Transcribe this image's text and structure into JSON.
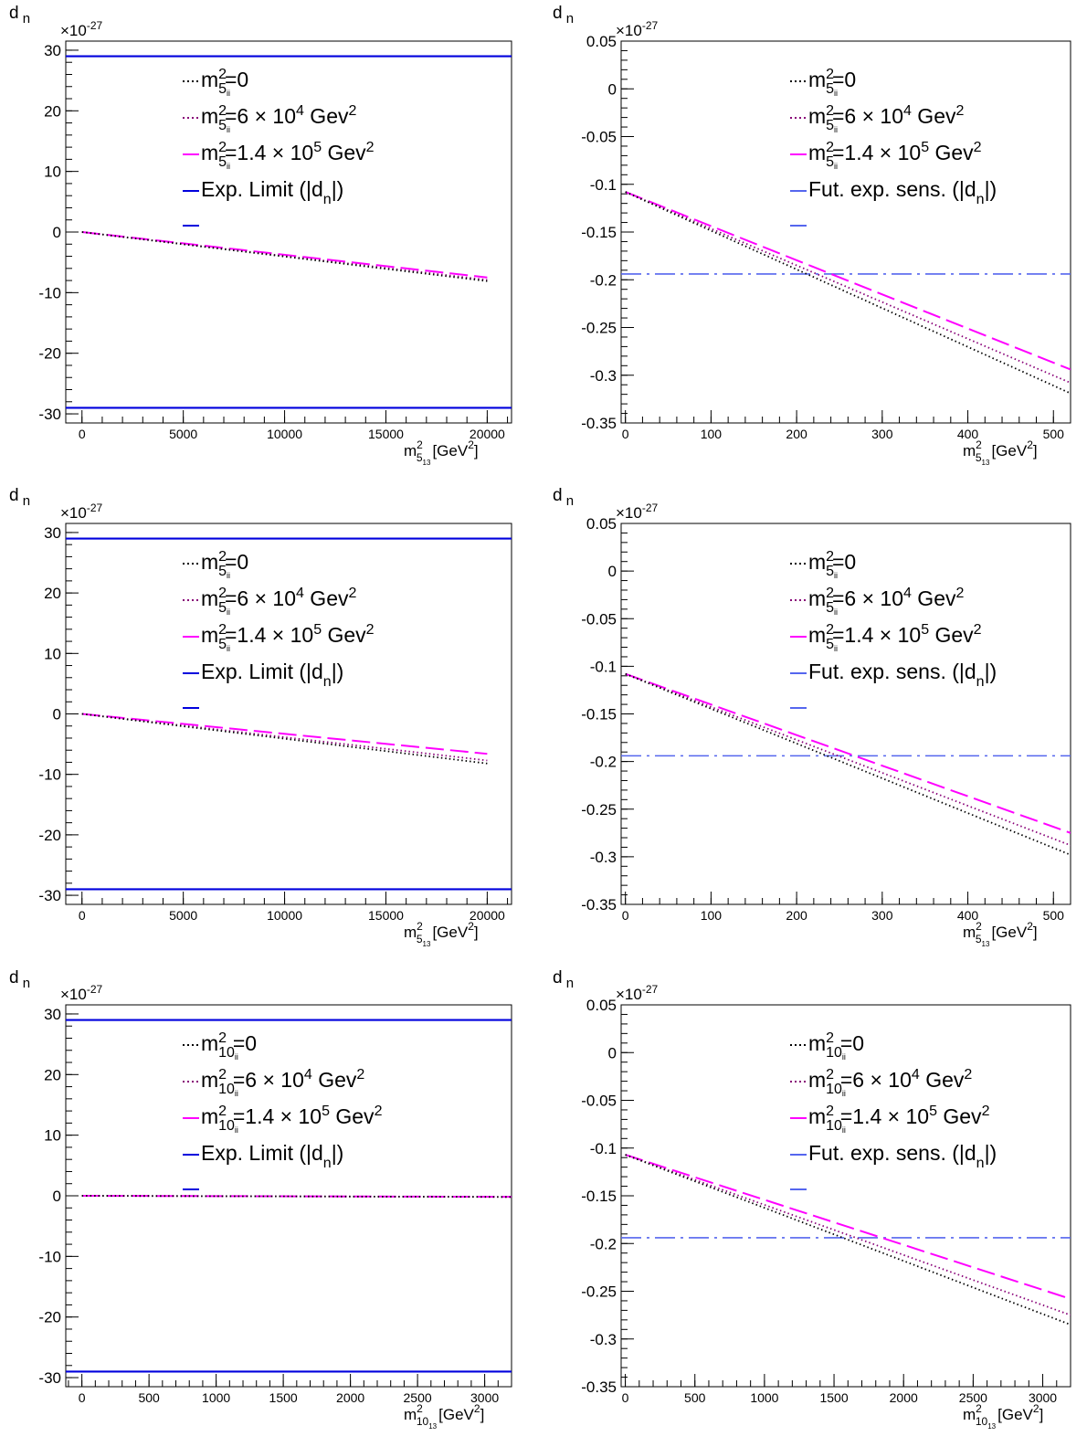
{
  "chart_data": [
    {
      "type": "line",
      "ylabel": "d",
      "ylabel_sub": "n",
      "exponent_label": "×10",
      "exponent": "-27",
      "xlabel_base": "m",
      "xlabel_sup": "2",
      "xlabel_sub": "5",
      "xlabel_subsub": "13",
      "xlabel_unit": "[GeV",
      "xlabel_unit_sup": "2",
      "xlabel_unit_close": "]",
      "xlim": [
        -800,
        21200
      ],
      "ylim": [
        -31.5,
        31.5
      ],
      "x_ticks": [
        "0",
        "5000",
        "10000",
        "15000",
        "20000"
      ],
      "x_tick_values": [
        0,
        5000,
        10000,
        15000,
        20000
      ],
      "x_minor_step": 1000,
      "y_ticks": [
        "-30",
        "-20",
        "-10",
        "0",
        "10",
        "20",
        "30"
      ],
      "y_tick_values": [
        -30,
        -20,
        -10,
        0,
        10,
        20,
        30
      ],
      "y_minor_step": 2,
      "legend": {
        "position": "top-left",
        "entries": [
          {
            "sym_base": "m",
            "sym_sup": "2",
            "sym_sub": "5",
            "sym_subsub": "ii",
            "text": "=0",
            "style": "dotted-black"
          },
          {
            "sym_base": "m",
            "sym_sup": "2",
            "sym_sub": "5",
            "sym_subsub": "ii",
            "text": "=6 × 10",
            "text_sup": "4",
            "text2": " Gev",
            "text2_sup": "2",
            "style": "dotted-purple"
          },
          {
            "sym_base": "m",
            "sym_sup": "2",
            "sym_sub": "5",
            "sym_subsub": "ii",
            "text": "=1.4 × 10",
            "text_sup": "5",
            "text2": " Gev",
            "text2_sup": "2",
            "style": "dashed-magenta"
          },
          {
            "sym_base": "",
            "text": "Exp. Limit (|d",
            "text_sub": "n",
            "text2": "|)",
            "style": "solid-blue"
          }
        ]
      },
      "series": [
        {
          "style": "dotted-black",
          "x": [
            0,
            20000
          ],
          "y": [
            0,
            -8.1
          ]
        },
        {
          "style": "dotted-purple",
          "x": [
            0,
            20000
          ],
          "y": [
            0,
            -7.9
          ]
        },
        {
          "style": "dashed-magenta",
          "x": [
            0,
            20000
          ],
          "y": [
            0,
            -7.5
          ]
        }
      ],
      "hlines": [
        {
          "style": "solid-blue",
          "y": 29
        },
        {
          "style": "solid-blue",
          "y": -29
        }
      ]
    },
    {
      "type": "line",
      "ylabel": "d",
      "ylabel_sub": "n",
      "exponent_label": "×10",
      "exponent": "-27",
      "xlabel_base": "m",
      "xlabel_sup": "2",
      "xlabel_sub": "5",
      "xlabel_subsub": "13",
      "xlabel_unit": "[GeV",
      "xlabel_unit_sup": "2",
      "xlabel_unit_close": "]",
      "xlim": [
        -5,
        520
      ],
      "ylim": [
        -0.35,
        0.05
      ],
      "x_ticks": [
        "0",
        "100",
        "200",
        "300",
        "400",
        "500"
      ],
      "x_tick_values": [
        0,
        100,
        200,
        300,
        400,
        500
      ],
      "x_minor_step": 20,
      "y_ticks": [
        "-0.35",
        "-0.3",
        "-0.25",
        "-0.2",
        "-0.15",
        "-0.1",
        "-0.05",
        "0",
        "0.05"
      ],
      "y_tick_values": [
        -0.35,
        -0.3,
        -0.25,
        -0.2,
        -0.15,
        -0.1,
        -0.05,
        0,
        0.05
      ],
      "y_minor_step": 0.01,
      "legend": {
        "position": "top-center",
        "entries": [
          {
            "sym_base": "m",
            "sym_sup": "2",
            "sym_sub": "5",
            "sym_subsub": "ii",
            "text": "=0",
            "style": "dotted-black"
          },
          {
            "sym_base": "m",
            "sym_sup": "2",
            "sym_sub": "5",
            "sym_subsub": "ii",
            "text": "=6 × 10",
            "text_sup": "4",
            "text2": " Gev",
            "text2_sup": "2",
            "style": "dotted-purple"
          },
          {
            "sym_base": "m",
            "sym_sup": "2",
            "sym_sub": "5",
            "sym_subsub": "ii",
            "text": "=1.4 × 10",
            "text_sup": "5",
            "text2": " Gev",
            "text2_sup": "2",
            "style": "dashed-magenta"
          },
          {
            "sym_base": "",
            "text": "Fut. exp. sens. (|d",
            "text_sub": "n",
            "text2": "|)",
            "style": "dashdot-blue"
          }
        ]
      },
      "series": [
        {
          "style": "dotted-black",
          "x": [
            0,
            520
          ],
          "y": [
            -0.108,
            -0.319
          ]
        },
        {
          "style": "dotted-purple",
          "x": [
            0,
            520
          ],
          "y": [
            -0.108,
            -0.308
          ]
        },
        {
          "style": "dashed-magenta",
          "x": [
            0,
            520
          ],
          "y": [
            -0.108,
            -0.294
          ]
        }
      ],
      "hlines": [
        {
          "style": "dashdot-blue",
          "y": -0.194
        }
      ]
    },
    {
      "type": "line",
      "ylabel": "d",
      "ylabel_sub": "n",
      "exponent_label": "×10",
      "exponent": "-27",
      "xlabel_base": "m",
      "xlabel_sup": "2",
      "xlabel_sub": "5",
      "xlabel_subsub": "13",
      "xlabel_unit": "[GeV",
      "xlabel_unit_sup": "2",
      "xlabel_unit_close": "]",
      "xlim": [
        -800,
        21200
      ],
      "ylim": [
        -31.5,
        31.5
      ],
      "x_ticks": [
        "0",
        "5000",
        "10000",
        "15000",
        "20000"
      ],
      "x_tick_values": [
        0,
        5000,
        10000,
        15000,
        20000
      ],
      "x_minor_step": 1000,
      "y_ticks": [
        "-30",
        "-20",
        "-10",
        "0",
        "10",
        "20",
        "30"
      ],
      "y_tick_values": [
        -30,
        -20,
        -10,
        0,
        10,
        20,
        30
      ],
      "y_minor_step": 2,
      "legend": {
        "position": "top-left",
        "entries": [
          {
            "sym_base": "m",
            "sym_sup": "2",
            "sym_sub": "5",
            "sym_subsub": "ii",
            "text": "=0",
            "style": "dotted-black"
          },
          {
            "sym_base": "m",
            "sym_sup": "2",
            "sym_sub": "5",
            "sym_subsub": "ii",
            "text": "=6 × 10",
            "text_sup": "4",
            "text2": " Gev",
            "text2_sup": "2",
            "style": "dotted-purple"
          },
          {
            "sym_base": "m",
            "sym_sup": "2",
            "sym_sub": "5",
            "sym_subsub": "ii",
            "text": "=1.4 × 10",
            "text_sup": "5",
            "text2": " Gev",
            "text2_sup": "2",
            "style": "dashed-magenta"
          },
          {
            "sym_base": "",
            "text": "Exp. Limit (|d",
            "text_sub": "n",
            "text2": "|)",
            "style": "solid-blue"
          }
        ]
      },
      "series": [
        {
          "style": "dotted-black",
          "x": [
            0,
            20000
          ],
          "y": [
            0,
            -8.2
          ]
        },
        {
          "style": "dotted-purple",
          "x": [
            0,
            20000
          ],
          "y": [
            0,
            -7.7
          ]
        },
        {
          "style": "dashed-magenta",
          "x": [
            0,
            20000
          ],
          "y": [
            0,
            -6.6
          ]
        }
      ],
      "hlines": [
        {
          "style": "solid-blue",
          "y": 29
        },
        {
          "style": "solid-blue",
          "y": -29
        }
      ]
    },
    {
      "type": "line",
      "ylabel": "d",
      "ylabel_sub": "n",
      "exponent_label": "×10",
      "exponent": "-27",
      "xlabel_base": "m",
      "xlabel_sup": "2",
      "xlabel_sub": "5",
      "xlabel_subsub": "13",
      "xlabel_unit": "[GeV",
      "xlabel_unit_sup": "2",
      "xlabel_unit_close": "]",
      "xlim": [
        -5,
        520
      ],
      "ylim": [
        -0.35,
        0.05
      ],
      "x_ticks": [
        "0",
        "100",
        "200",
        "300",
        "400",
        "500"
      ],
      "x_tick_values": [
        0,
        100,
        200,
        300,
        400,
        500
      ],
      "x_minor_step": 20,
      "y_ticks": [
        "-0.35",
        "-0.3",
        "-0.25",
        "-0.2",
        "-0.15",
        "-0.1",
        "-0.05",
        "0",
        "0.05"
      ],
      "y_tick_values": [
        -0.35,
        -0.3,
        -0.25,
        -0.2,
        -0.15,
        -0.1,
        -0.05,
        0,
        0.05
      ],
      "y_minor_step": 0.01,
      "legend": {
        "position": "top-center",
        "entries": [
          {
            "sym_base": "m",
            "sym_sup": "2",
            "sym_sub": "5",
            "sym_subsub": "ii",
            "text": "=0",
            "style": "dotted-black"
          },
          {
            "sym_base": "m",
            "sym_sup": "2",
            "sym_sub": "5",
            "sym_subsub": "ii",
            "text": "=6 × 10",
            "text_sup": "4",
            "text2": " Gev",
            "text2_sup": "2",
            "style": "dotted-purple"
          },
          {
            "sym_base": "m",
            "sym_sup": "2",
            "sym_sub": "5",
            "sym_subsub": "ii",
            "text": "=1.4 × 10",
            "text_sup": "5",
            "text2": " Gev",
            "text2_sup": "2",
            "style": "dashed-magenta"
          },
          {
            "sym_base": "",
            "text": "Fut. exp. sens. (|d",
            "text_sub": "n",
            "text2": "|)",
            "style": "dashdot-blue"
          }
        ]
      },
      "series": [
        {
          "style": "dotted-black",
          "x": [
            0,
            520
          ],
          "y": [
            -0.108,
            -0.298
          ]
        },
        {
          "style": "dotted-purple",
          "x": [
            0,
            520
          ],
          "y": [
            -0.108,
            -0.288
          ]
        },
        {
          "style": "dashed-magenta",
          "x": [
            0,
            520
          ],
          "y": [
            -0.108,
            -0.275
          ]
        }
      ],
      "hlines": [
        {
          "style": "dashdot-blue",
          "y": -0.194
        }
      ]
    },
    {
      "type": "line",
      "ylabel": "d",
      "ylabel_sub": "n",
      "exponent_label": "×10",
      "exponent": "-27",
      "xlabel_base": "m",
      "xlabel_sup": "2",
      "xlabel_sub": "10",
      "xlabel_subsub": "13",
      "xlabel_unit": "[GeV",
      "xlabel_unit_sup": "2",
      "xlabel_unit_close": "]",
      "xlim": [
        -120,
        3200
      ],
      "ylim": [
        -31.5,
        31.5
      ],
      "x_ticks": [
        "0",
        "500",
        "1000",
        "1500",
        "2000",
        "2500",
        "3000"
      ],
      "x_tick_values": [
        0,
        500,
        1000,
        1500,
        2000,
        2500,
        3000
      ],
      "x_minor_step": 100,
      "y_ticks": [
        "-30",
        "-20",
        "-10",
        "0",
        "10",
        "20",
        "30"
      ],
      "y_tick_values": [
        -30,
        -20,
        -10,
        0,
        10,
        20,
        30
      ],
      "y_minor_step": 2,
      "legend": {
        "position": "top-left",
        "entries": [
          {
            "sym_base": "m",
            "sym_sup": "2",
            "sym_sub": "10",
            "sym_subsub": "ii",
            "text": "=0",
            "style": "dotted-black"
          },
          {
            "sym_base": "m",
            "sym_sup": "2",
            "sym_sub": "10",
            "sym_subsub": "ii",
            "text": "=6 × 10",
            "text_sup": "4",
            "text2": " Gev",
            "text2_sup": "2",
            "style": "dotted-purple"
          },
          {
            "sym_base": "m",
            "sym_sup": "2",
            "sym_sub": "10",
            "sym_subsub": "ii",
            "text": "=1.4 × 10",
            "text_sup": "5",
            "text2": " Gev",
            "text2_sup": "2",
            "style": "dashed-magenta"
          },
          {
            "sym_base": "",
            "text": "Exp. Limit (|d",
            "text_sub": "n",
            "text2": "|)",
            "style": "solid-blue"
          }
        ]
      },
      "series": [
        {
          "style": "dotted-black",
          "x": [
            0,
            3200
          ],
          "y": [
            0,
            -0.2
          ]
        },
        {
          "style": "dotted-purple",
          "x": [
            0,
            3200
          ],
          "y": [
            0,
            -0.19
          ]
        },
        {
          "style": "dashed-magenta",
          "x": [
            0,
            3200
          ],
          "y": [
            0,
            -0.17
          ]
        }
      ],
      "hlines": [
        {
          "style": "solid-blue",
          "y": 29
        },
        {
          "style": "solid-blue",
          "y": -29
        }
      ]
    },
    {
      "type": "line",
      "ylabel": "d",
      "ylabel_sub": "n",
      "exponent_label": "×10",
      "exponent": "-27",
      "xlabel_base": "m",
      "xlabel_sup": "2",
      "xlabel_sub": "10",
      "xlabel_subsub": "13",
      "xlabel_unit": "[GeV",
      "xlabel_unit_sup": "2",
      "xlabel_unit_close": "]",
      "xlim": [
        -30,
        3200
      ],
      "ylim": [
        -0.35,
        0.05
      ],
      "x_ticks": [
        "0",
        "500",
        "1000",
        "1500",
        "2000",
        "2500",
        "3000"
      ],
      "x_tick_values": [
        0,
        500,
        1000,
        1500,
        2000,
        2500,
        3000
      ],
      "x_minor_step": 100,
      "y_ticks": [
        "-0.35",
        "-0.3",
        "-0.25",
        "-0.2",
        "-0.15",
        "-0.1",
        "-0.05",
        "0",
        "0.05"
      ],
      "y_tick_values": [
        -0.35,
        -0.3,
        -0.25,
        -0.2,
        -0.15,
        -0.1,
        -0.05,
        0,
        0.05
      ],
      "y_minor_step": 0.01,
      "legend": {
        "position": "top-center",
        "entries": [
          {
            "sym_base": "m",
            "sym_sup": "2",
            "sym_sub": "10",
            "sym_subsub": "ii",
            "text": "=0",
            "style": "dotted-black"
          },
          {
            "sym_base": "m",
            "sym_sup": "2",
            "sym_sub": "10",
            "sym_subsub": "ii",
            "text": "=6 × 10",
            "text_sup": "4",
            "text2": " Gev",
            "text2_sup": "2",
            "style": "dotted-purple"
          },
          {
            "sym_base": "m",
            "sym_sup": "2",
            "sym_sub": "10",
            "sym_subsub": "ii",
            "text": "=1.4 × 10",
            "text_sup": "5",
            "text2": " Gev",
            "text2_sup": "2",
            "style": "dashed-magenta"
          },
          {
            "sym_base": "",
            "text": "Fut. exp. sens. (|d",
            "text_sub": "n",
            "text2": "|)",
            "style": "dashdot-blue"
          }
        ]
      },
      "series": [
        {
          "style": "dotted-black",
          "x": [
            0,
            3200
          ],
          "y": [
            -0.107,
            -0.285
          ]
        },
        {
          "style": "dotted-purple",
          "x": [
            0,
            3200
          ],
          "y": [
            -0.107,
            -0.275
          ]
        },
        {
          "style": "dashed-magenta",
          "x": [
            0,
            3200
          ],
          "y": [
            -0.107,
            -0.258
          ]
        }
      ],
      "hlines": [
        {
          "style": "dashdot-blue",
          "y": -0.194
        }
      ]
    }
  ],
  "styles": {
    "dotted-black": {
      "color": "#000000"
    },
    "dotted-purple": {
      "color": "#880077"
    },
    "dashed-magenta": {
      "color": "#ff00ff"
    },
    "solid-blue": {
      "color": "#0000dd"
    },
    "dashdot-blue": {
      "color": "#5566ee"
    }
  }
}
